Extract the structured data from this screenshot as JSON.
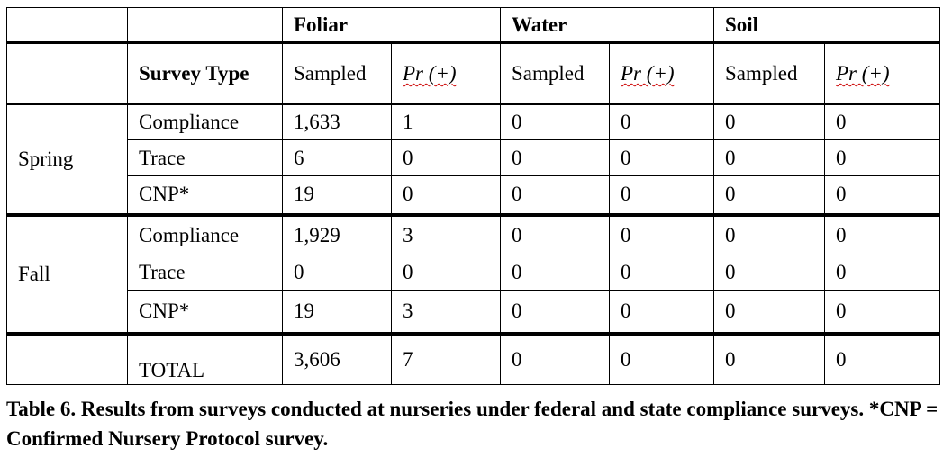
{
  "table": {
    "groups": [
      "Foliar",
      "Water",
      "Soil"
    ],
    "survey_type_header": "Survey Type",
    "subheaders": [
      "Sampled",
      "Pr (+)",
      "Sampled",
      "Pr (+)",
      "Sampled",
      "Pr (+)"
    ],
    "sections": [
      {
        "season": "Spring",
        "rows": [
          {
            "type": "Compliance",
            "values": [
              "1,633",
              "1",
              "0",
              "0",
              "0",
              "0"
            ]
          },
          {
            "type": "Trace",
            "values": [
              "6",
              "0",
              "0",
              "0",
              "0",
              "0"
            ]
          },
          {
            "type": "CNP*",
            "values": [
              "19",
              "0",
              "0",
              "0",
              "0",
              "0"
            ]
          }
        ]
      },
      {
        "season": "Fall",
        "rows": [
          {
            "type": "Compliance",
            "values": [
              "1,929",
              "3",
              "0",
              "0",
              "0",
              "0"
            ]
          },
          {
            "type": "Trace",
            "values": [
              "0",
              "0",
              "0",
              "0",
              "0",
              "0"
            ]
          },
          {
            "type": "CNP*",
            "values": [
              "19",
              "3",
              "0",
              "0",
              "0",
              "0"
            ]
          }
        ]
      }
    ],
    "total": {
      "label": "TOTAL",
      "values": [
        "3,606",
        "7",
        "0",
        "0",
        "0",
        "0"
      ]
    }
  },
  "caption": "Table 6. Results from surveys conducted at nurseries under federal and state compliance surveys. *CNP = Confirmed Nursery Protocol survey."
}
